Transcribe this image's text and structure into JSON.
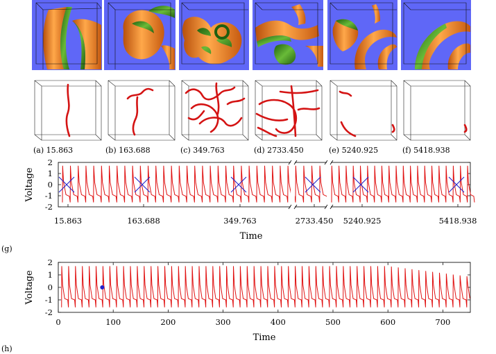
{
  "panels": [
    {
      "caption": "(a) 15.863"
    },
    {
      "caption": "(b) 163.688"
    },
    {
      "caption": "(c) 349.763"
    },
    {
      "caption": "(d) 2733.450"
    },
    {
      "caption": "(e) 5240.925"
    },
    {
      "caption": "(f) 5418.938"
    }
  ],
  "colors": {
    "background_blue": "#5f67f7",
    "surface_orange": "#f07e22",
    "surface_green": "#2f8a1d",
    "filament_red": "#d41313",
    "trace_red": "#e01010",
    "marker_blue": "#2222cc"
  },
  "chart_data": [
    {
      "type": "line",
      "panel_label": "(g)",
      "xlabel": "Time",
      "ylabel": "Voltage",
      "ylim": [
        -2,
        2
      ],
      "yticks": [
        "2",
        "1",
        "0",
        "-1",
        "-2"
      ],
      "x_tick_labels": [
        "15.863",
        "163.688",
        "349.763",
        "2733.450",
        "5240.925",
        "5418.938"
      ],
      "axis_breaks": 2,
      "markers": [
        {
          "symbol": "x",
          "time": 15.863
        },
        {
          "symbol": "x",
          "time": 163.688
        },
        {
          "symbol": "x",
          "time": 349.763
        },
        {
          "symbol": "x",
          "time": 2733.45
        },
        {
          "symbol": "x",
          "time": 5240.925
        },
        {
          "symbol": "x",
          "time": 5418.938
        }
      ],
      "series": [
        {
          "shape": "periodic action-potential spikes",
          "peak_voltage": 1.7,
          "plateau_voltage": -1.0,
          "trough_voltage": -1.6,
          "spike_count": 50
        }
      ],
      "grid": false
    },
    {
      "type": "line",
      "panel_label": "(h)",
      "xlabel": "Time",
      "ylabel": "Voltage",
      "xlim": [
        0,
        750
      ],
      "ylim": [
        -2,
        2
      ],
      "xticks": [
        "0",
        "100",
        "200",
        "300",
        "400",
        "500",
        "600",
        "700"
      ],
      "yticks": [
        "2",
        "1",
        "0",
        "-1",
        "-2"
      ],
      "marker": {
        "symbol": "dot",
        "x": 80,
        "y": 0
      },
      "series": [
        {
          "shape": "periodic spikes with amplitude decaying after t=600",
          "period": 12.5,
          "first_spike": 6,
          "peak_voltage": 1.7,
          "plateau_voltage": -1.0,
          "trough_voltage": -1.6,
          "decay_start": 600,
          "final_peak_voltage": 0.85
        }
      ],
      "grid": false
    }
  ]
}
